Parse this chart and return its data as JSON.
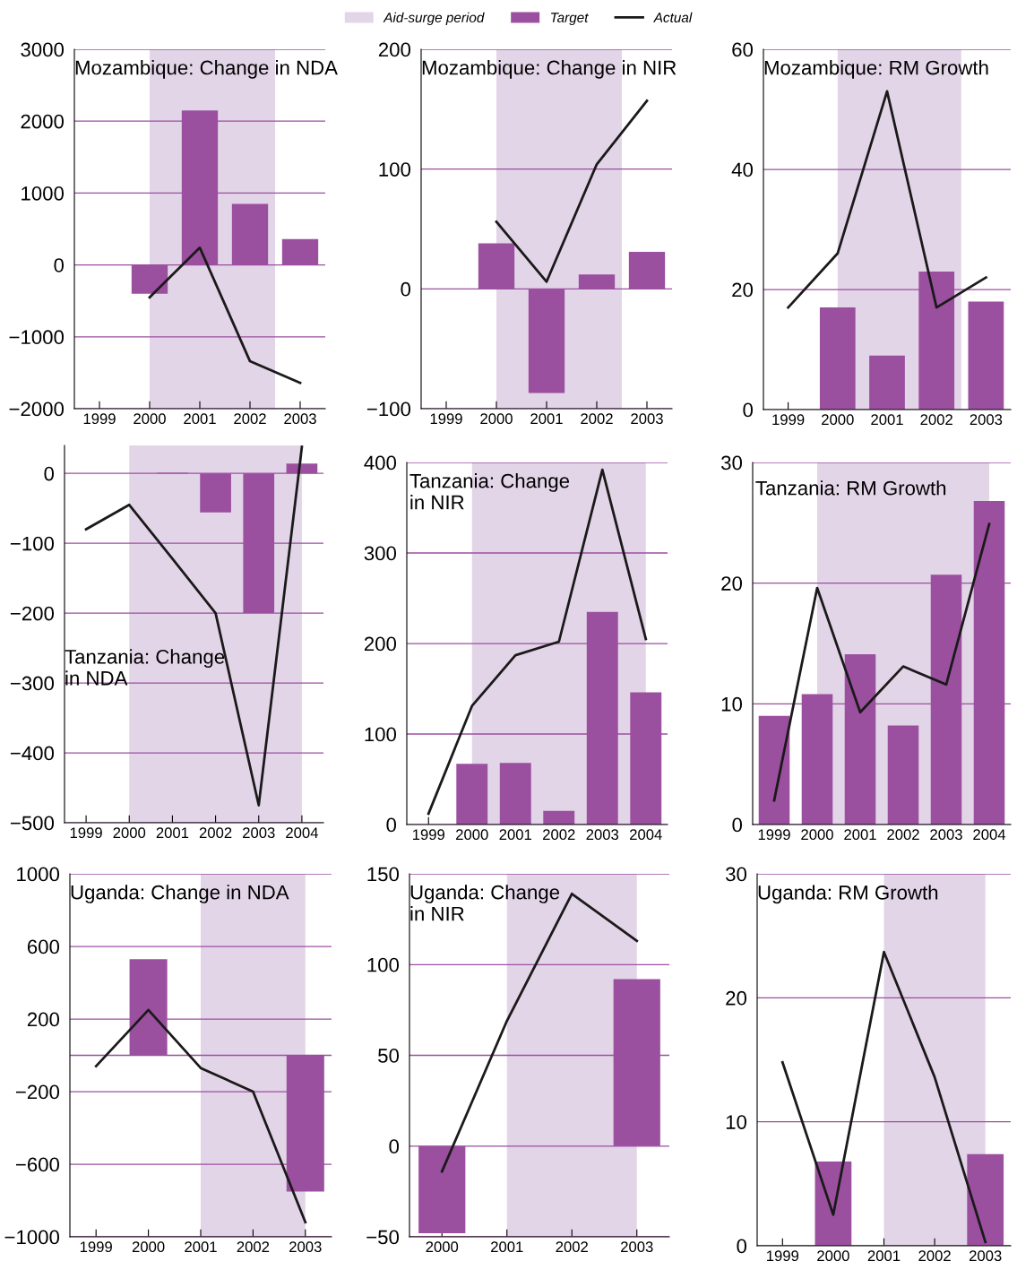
{
  "chart_data": [
    {
      "type": "bar",
      "title": "Mozambique: Change in NDA",
      "x": [
        2000,
        2001,
        2002,
        2003
      ],
      "xlim": [
        1998.5,
        2003.5
      ],
      "xticks": [
        1999,
        2000,
        2001,
        2002,
        2003
      ],
      "ylim": [
        -2000,
        3000
      ],
      "yticks": [
        {
          "value": -2000,
          "label": "−2000"
        },
        {
          "value": -1000,
          "label": "−1000"
        },
        0,
        1000,
        2000,
        3000
      ],
      "grid": "y",
      "legend": "top",
      "bands": [
        {
          "axis": "x",
          "from": 2000,
          "to": 2002.5,
          "label": "Aid-surge period",
          "color": "#e3d5e8"
        }
      ],
      "series": [
        {
          "name": "Target",
          "color": "#9b4f9f",
          "values": [
            -400,
            2150,
            850,
            360
          ]
        },
        {
          "name": "Actual",
          "type": "line",
          "color": "#1a1a1a",
          "values": [
            -450,
            240,
            -1340,
            -1640
          ]
        }
      ]
    },
    {
      "type": "bar",
      "title": "Mozambique: Change in NIR",
      "x": [
        2000,
        2001,
        2002,
        2003
      ],
      "xlim": [
        1998.5,
        2003.5
      ],
      "xticks": [
        1999,
        2000,
        2001,
        2002,
        2003
      ],
      "ylim": [
        -100,
        200
      ],
      "yticks": [
        {
          "value": -100,
          "label": "−100"
        },
        0,
        100,
        200
      ],
      "grid": "y",
      "bands": [
        {
          "axis": "x",
          "from": 2000,
          "to": 2002.5,
          "color": "#e3d5e8"
        }
      ],
      "series": [
        {
          "color": "#9b4f9f",
          "values": [
            38,
            -87,
            12,
            31
          ]
        },
        {
          "type": "line",
          "color": "#1a1a1a",
          "values": [
            56,
            6,
            104,
            157
          ]
        }
      ]
    },
    {
      "type": "bar",
      "title": "Mozambique: RM Growth",
      "x": [
        1999,
        2000,
        2001,
        2002,
        2003
      ],
      "xlim": [
        1998.5,
        2003.5
      ],
      "xticks": [
        1999,
        2000,
        2001,
        2002,
        2003
      ],
      "ylim": [
        0,
        60
      ],
      "yticks": [
        0,
        20,
        40,
        60
      ],
      "grid": "y",
      "bands": [
        {
          "axis": "x",
          "from": 2000,
          "to": 2002.5,
          "color": "#e3d5e8"
        }
      ],
      "series": [
        {
          "color": "#9b4f9f",
          "values": [
            null,
            17,
            9,
            23,
            18
          ]
        },
        {
          "type": "line",
          "color": "#1a1a1a",
          "values": [
            17,
            26,
            53,
            17,
            22
          ]
        }
      ]
    },
    {
      "type": "bar",
      "title": "Tanzania: Change\nin NDA",
      "x": [
        1999,
        2000,
        2001,
        2002,
        2003,
        2004
      ],
      "xlim": [
        1998.5,
        2004.5
      ],
      "xticks": [
        1999,
        2000,
        2001,
        2002,
        2003,
        2004
      ],
      "ylim": [
        -500,
        40
      ],
      "yticks": [
        {
          "value": -500,
          "label": "−500"
        },
        {
          "value": -400,
          "label": "−400"
        },
        {
          "value": -300,
          "label": "−300"
        },
        {
          "value": -200,
          "label": "−200"
        },
        {
          "value": -100,
          "label": "−100"
        },
        0
      ],
      "grid": "y",
      "bands": [
        {
          "axis": "x",
          "from": 2000,
          "to": 2004,
          "color": "#e3d5e8"
        }
      ],
      "series": [
        {
          "color": "#9b4f9f",
          "values": [
            null,
            null,
            1,
            -56,
            -200,
            14
          ]
        },
        {
          "type": "line",
          "color": "#1a1a1a",
          "values": [
            -80,
            -45,
            -122,
            -200,
            -475,
            38
          ]
        }
      ]
    },
    {
      "type": "bar",
      "title": "Tanzania: Change\nin NIR",
      "x": [
        1999,
        2000,
        2001,
        2002,
        2003,
        2004
      ],
      "xlim": [
        1998.5,
        2004.5
      ],
      "xticks": [
        1999,
        2000,
        2001,
        2002,
        2003,
        2004
      ],
      "ylim": [
        0,
        400
      ],
      "yticks": [
        0,
        100,
        200,
        300,
        400
      ],
      "grid": "y",
      "bands": [
        {
          "axis": "x",
          "from": 2000,
          "to": 2004,
          "color": "#e3d5e8"
        }
      ],
      "series": [
        {
          "color": "#9b4f9f",
          "values": [
            null,
            67,
            68,
            15,
            235,
            146
          ]
        },
        {
          "type": "line",
          "color": "#1a1a1a",
          "values": [
            12,
            131,
            187,
            202,
            392,
            205
          ]
        }
      ]
    },
    {
      "type": "bar",
      "title": "Tanzania: RM Growth",
      "x": [
        1999,
        2000,
        2001,
        2002,
        2003,
        2004
      ],
      "xlim": [
        1998.5,
        2004.5
      ],
      "xticks": [
        1999,
        2000,
        2001,
        2002,
        2003,
        2004
      ],
      "ylim": [
        0,
        30
      ],
      "yticks": [
        0,
        10,
        20,
        30
      ],
      "grid": "y",
      "bands": [
        {
          "axis": "x",
          "from": 2000,
          "to": 2004,
          "color": "#e3d5e8"
        }
      ],
      "series": [
        {
          "color": "#9b4f9f",
          "values": [
            9,
            10.8,
            14.1,
            8.2,
            20.7,
            26.8
          ]
        },
        {
          "type": "line",
          "color": "#1a1a1a",
          "values": [
            2,
            19.6,
            9.3,
            13.1,
            11.6,
            24.9
          ]
        }
      ]
    },
    {
      "type": "bar",
      "title": "Uganda: Change in NDA",
      "x": [
        1999,
        2000,
        2001,
        2002,
        2003
      ],
      "xlim": [
        1998.5,
        2003.5
      ],
      "xticks": [
        1999,
        2000,
        2001,
        2002,
        2003
      ],
      "ylim": [
        -1000,
        1000
      ],
      "yticks": [
        {
          "value": -1000,
          "label": "−1000"
        },
        {
          "value": -600,
          "label": "−600"
        },
        {
          "value": -200,
          "label": "−200"
        },
        {
          "value": 0,
          "label": null
        },
        200,
        600,
        1000
      ],
      "grid": "y",
      "bands": [
        {
          "axis": "x",
          "from": 2001,
          "to": 2003,
          "color": "#e3d5e8"
        }
      ],
      "series": [
        {
          "color": "#9b4f9f",
          "values": [
            null,
            530,
            null,
            null,
            -750
          ]
        },
        {
          "type": "line",
          "color": "#1a1a1a",
          "values": [
            -60,
            250,
            -70,
            -200,
            -920
          ]
        }
      ]
    },
    {
      "type": "bar",
      "title": "Uganda: Change\nin NIR",
      "x": [
        2000,
        2001,
        2002,
        2003
      ],
      "xlim": [
        1999.5,
        2003.5
      ],
      "xticks": [
        2000,
        2001,
        2002,
        2003
      ],
      "ylim": [
        -50,
        150
      ],
      "yticks": [
        {
          "value": -50,
          "label": "−50"
        },
        0,
        50,
        100,
        150
      ],
      "grid": "y",
      "bands": [
        {
          "axis": "x",
          "from": 2001,
          "to": 2003,
          "color": "#e3d5e8"
        }
      ],
      "series": [
        {
          "color": "#9b4f9f",
          "values": [
            -48,
            null,
            null,
            92
          ]
        },
        {
          "type": "line",
          "color": "#1a1a1a",
          "values": [
            -14,
            69,
            139,
            113
          ]
        }
      ]
    },
    {
      "type": "bar",
      "title": "Uganda: RM Growth",
      "x": [
        1999,
        2000,
        2001,
        2002,
        2003
      ],
      "xlim": [
        1998.5,
        2003.5
      ],
      "xticks": [
        1999,
        2000,
        2001,
        2002,
        2003
      ],
      "ylim": [
        0,
        30
      ],
      "yticks": [
        0,
        10,
        20,
        30
      ],
      "grid": "y",
      "bands": [
        {
          "axis": "x",
          "from": 2001,
          "to": 2003,
          "color": "#e3d5e8"
        }
      ],
      "series": [
        {
          "color": "#9b4f9f",
          "values": [
            null,
            6.8,
            null,
            null,
            7.4
          ]
        },
        {
          "type": "line",
          "color": "#1a1a1a",
          "values": [
            14.8,
            2.5,
            23.7,
            13.6,
            0.3
          ]
        }
      ]
    }
  ]
}
